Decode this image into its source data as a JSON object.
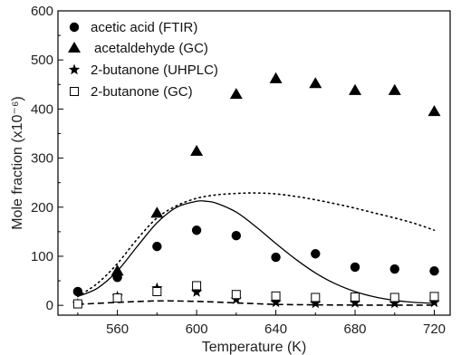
{
  "chart_data": {
    "type": "scatter",
    "xlabel": "Temperature (K)",
    "ylabel": "Mole fraction (x10⁻⁶)",
    "xlim": [
      530,
      728
    ],
    "ylim": [
      -20,
      600
    ],
    "xticks": [
      560,
      600,
      640,
      680,
      720
    ],
    "yticks": [
      0,
      100,
      200,
      300,
      400,
      500,
      600
    ],
    "grid": false,
    "legend_position": "top-left",
    "series": [
      {
        "name": "acetic acid (FTIR)",
        "marker": "circle",
        "x": [
          540,
          560,
          580,
          600,
          620,
          640,
          660,
          680,
          700,
          720
        ],
        "y": [
          28,
          57,
          120,
          153,
          142,
          98,
          105,
          78,
          74,
          70
        ]
      },
      {
        "name": "acetaldehyde (GC)",
        "marker": "triangle",
        "x": [
          560,
          580,
          600,
          620,
          640,
          660,
          680,
          700,
          720
        ],
        "y": [
          70,
          188,
          314,
          430,
          462,
          452,
          438,
          438,
          395
        ]
      },
      {
        "name": "2-butanone (UHPLC)",
        "marker": "star",
        "x": [
          540,
          560,
          580,
          600,
          620,
          640,
          660,
          680,
          700,
          720
        ],
        "y": [
          3,
          18,
          35,
          27,
          12,
          6,
          4,
          5,
          4,
          6
        ]
      },
      {
        "name": "2-butanone (GC)",
        "marker": "open-square",
        "x": [
          540,
          560,
          580,
          600,
          620,
          640,
          660,
          680,
          700,
          720
        ],
        "y": [
          3,
          15,
          28,
          40,
          22,
          19,
          16,
          17,
          16,
          18
        ]
      }
    ],
    "model_curves": [
      {
        "style": "solid",
        "x": [
          540,
          550,
          560,
          570,
          580,
          590,
          600,
          605,
          610,
          620,
          630,
          640,
          650,
          660,
          670,
          680,
          690,
          700,
          710,
          720
        ],
        "y": [
          18,
          35,
          70,
          120,
          168,
          200,
          212,
          212,
          208,
          190,
          160,
          126,
          94,
          66,
          44,
          28,
          17,
          10,
          6,
          4
        ]
      },
      {
        "style": "dotted",
        "x": [
          540,
          550,
          560,
          570,
          580,
          590,
          600,
          610,
          620,
          630,
          640,
          650,
          660,
          670,
          680,
          690,
          700,
          710,
          720
        ],
        "y": [
          18,
          45,
          85,
          135,
          178,
          203,
          218,
          225,
          228,
          229,
          227,
          222,
          215,
          207,
          198,
          188,
          178,
          167,
          153
        ]
      },
      {
        "style": "dashed",
        "x": [
          540,
          560,
          580,
          600,
          620,
          640,
          660,
          680,
          700,
          720
        ],
        "y": [
          2,
          6,
          9,
          8,
          5,
          2,
          1,
          0.5,
          0.5,
          0.5
        ]
      }
    ]
  }
}
